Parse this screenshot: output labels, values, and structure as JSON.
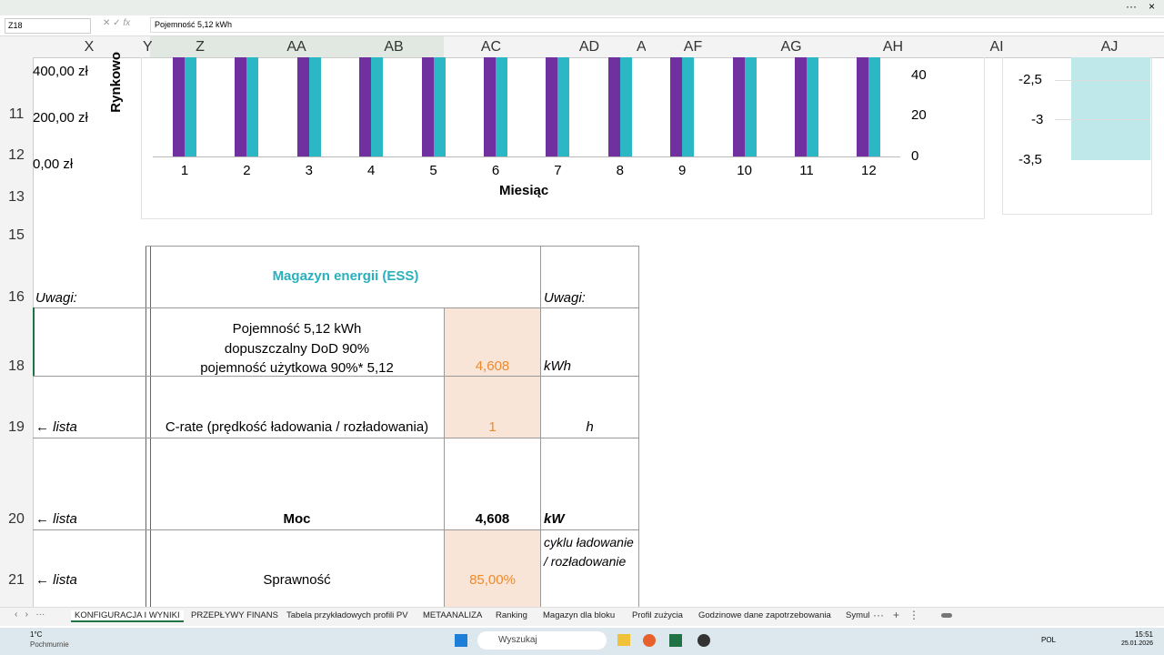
{
  "formula_bar": {
    "name_box": "Z18",
    "formula": "Pojemność 5,12 kWh"
  },
  "column_headers": [
    "X",
    "Y",
    "Z",
    "AA",
    "AB",
    "AC",
    "AD",
    "A",
    "AF",
    "AG",
    "AH",
    "AI",
    "AJ"
  ],
  "row_headers": [
    "11",
    "12",
    "13",
    "15",
    "16",
    "18",
    "19",
    "20",
    "21"
  ],
  "chart": {
    "y_axis_title": "Rynkowo",
    "y_ticks": [
      "400,00 zł",
      "200,00 zł",
      "0,00 zł"
    ],
    "y2_ticks": [
      "40",
      "20",
      "0"
    ],
    "categories": [
      "1",
      "2",
      "3",
      "4",
      "5",
      "6",
      "7",
      "8",
      "9",
      "10",
      "11",
      "12"
    ],
    "x_axis_title": "Miesiąc"
  },
  "side_chart": {
    "ticks": [
      "-2,5",
      "-3",
      "-3,5"
    ]
  },
  "table": {
    "title": "Magazyn energii (ESS)",
    "notes_left": "Uwagi:",
    "notes_right": "Uwagi:",
    "rows": [
      {
        "note": "",
        "label": [
          "Pojemność 5,12 kWh",
          "dopuszczalny DoD 90%",
          "pojemność użytkowa 90%* 5,12"
        ],
        "value": "4,608",
        "unit": "kWh"
      },
      {
        "note": "← lista",
        "label": [
          "C-rate (prędkość ładowania / rozładowania)"
        ],
        "value": "1",
        "unit": "h"
      },
      {
        "note": "← lista",
        "label": [
          "Moc"
        ],
        "value": "4,608",
        "unit": "kW"
      },
      {
        "note": "← lista",
        "label": [
          "Sprawność"
        ],
        "value": "85,00%",
        "unit": "cyklu ładowanie / rozładowanie"
      }
    ]
  },
  "sheet_tabs": [
    "KONFIGURACJA I WYNIKI",
    "PRZEPŁYWY FINANS",
    "Tabela przykładowych profili PV",
    "METAANALIZA",
    "Ranking",
    "Magazyn dla bloku",
    "Profil zużycia",
    "Godzinowe dane zapotrzebowania",
    "Symul"
  ],
  "taskbar": {
    "temperature": "1°C",
    "weather": "Pochmurnie",
    "search": "Wyszukaj",
    "language": "POL",
    "time": "15:51",
    "date": "25.01.2026"
  }
}
